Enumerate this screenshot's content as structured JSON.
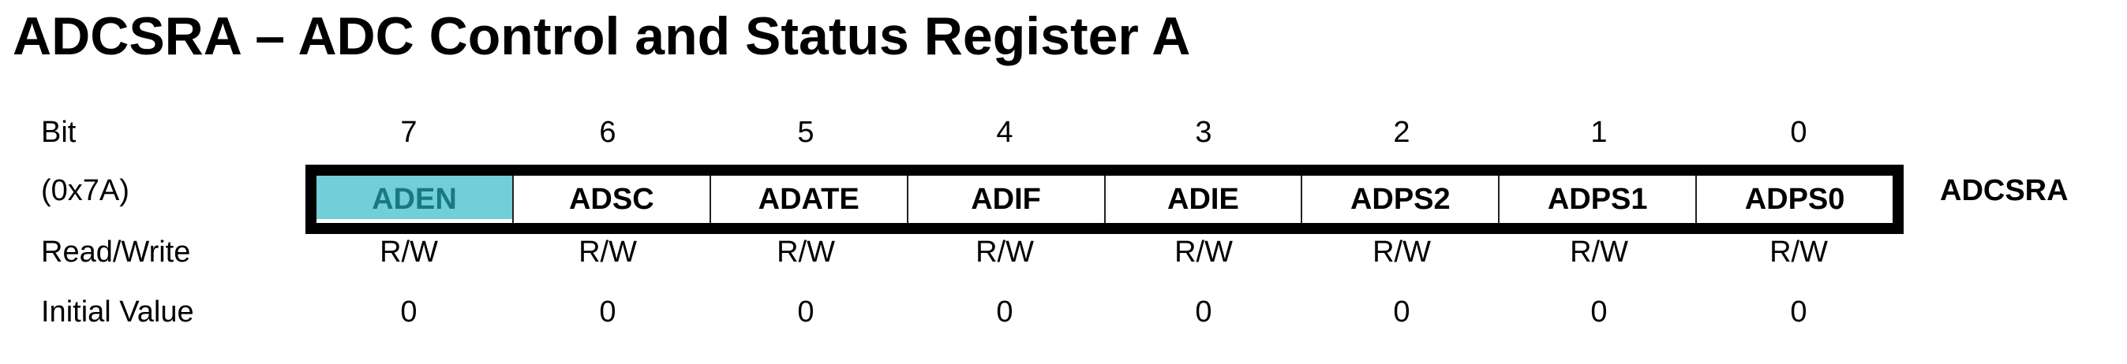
{
  "title": "ADCSRA – ADC Control and Status Register A",
  "row_labels": {
    "bit": "Bit",
    "address": "(0x7A)",
    "read_write": "Read/Write",
    "initial_value": "Initial Value"
  },
  "bits": [
    "7",
    "6",
    "5",
    "4",
    "3",
    "2",
    "1",
    "0"
  ],
  "fields": [
    {
      "name": "ADEN",
      "highlighted": true
    },
    {
      "name": "ADSC"
    },
    {
      "name": "ADATE"
    },
    {
      "name": "ADIF"
    },
    {
      "name": "ADIE"
    },
    {
      "name": "ADPS2"
    },
    {
      "name": "ADPS1"
    },
    {
      "name": "ADPS0"
    }
  ],
  "access": [
    "R/W",
    "R/W",
    "R/W",
    "R/W",
    "R/W",
    "R/W",
    "R/W",
    "R/W"
  ],
  "initial": [
    "0",
    "0",
    "0",
    "0",
    "0",
    "0",
    "0",
    "0"
  ],
  "register_name": "ADCSRA",
  "colors": {
    "highlight": "#72CED8",
    "highlight_text": "#177a80"
  }
}
